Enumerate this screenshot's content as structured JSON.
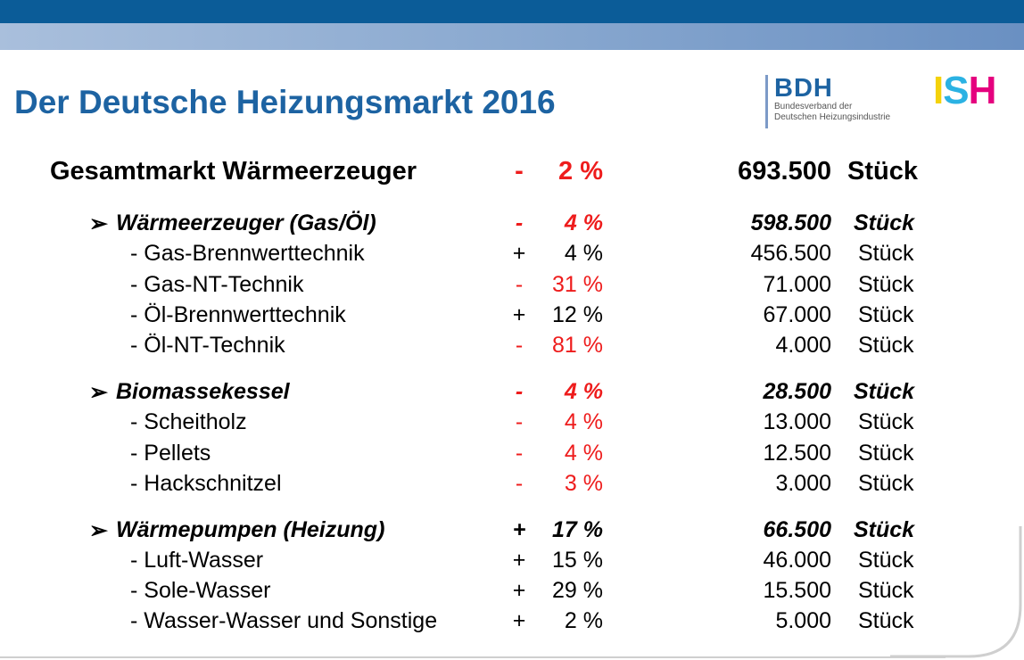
{
  "title": "Der Deutsche Heizungsmarkt 2016",
  "logos": {
    "bdh": {
      "name": "BDH",
      "line1": "Bundesverband der",
      "line2": "Deutschen Heizungsindustrie"
    },
    "ish": {
      "i": "I",
      "s": "S",
      "h": "H"
    }
  },
  "colors": {
    "title": "#1d63a2",
    "negative": "#ee1c1c",
    "positive": "#000000",
    "band_dark": "#0b5c98"
  },
  "total": {
    "label": "Gesamtmarkt Wärmeerzeuger",
    "sign": "-",
    "pct": "2 %",
    "qty": "693.500",
    "unit": "Stück"
  },
  "groups": [
    {
      "arrow": "➢",
      "label": "Wärmeerzeuger (Gas/Öl)",
      "sign": "-",
      "pct": "4 %",
      "qty": "598.500",
      "unit": "Stück",
      "items": [
        {
          "label": "- Gas-Brennwerttechnik",
          "sign": "+",
          "pct": "4 %",
          "qty": "456.500",
          "unit": "Stück"
        },
        {
          "label": "- Gas-NT-Technik",
          "sign": "-",
          "pct": "31 %",
          "qty": "71.000",
          "unit": "Stück"
        },
        {
          "label": "- Öl-Brennwerttechnik",
          "sign": "+",
          "pct": "12 %",
          "qty": "67.000",
          "unit": "Stück"
        },
        {
          "label": "- Öl-NT-Technik",
          "sign": "-",
          "pct": "81 %",
          "qty": "4.000",
          "unit": "Stück"
        }
      ]
    },
    {
      "arrow": "➢",
      "label": "Biomassekessel",
      "sign": "-",
      "pct": "4 %",
      "qty": "28.500",
      "unit": "Stück",
      "items": [
        {
          "label": "- Scheitholz",
          "sign": "-",
          "pct": "4 %",
          "qty": "13.000",
          "unit": "Stück"
        },
        {
          "label": "- Pellets",
          "sign": "-",
          "pct": "4 %",
          "qty": "12.500",
          "unit": "Stück"
        },
        {
          "label": "- Hackschnitzel",
          "sign": "-",
          "pct": "3 %",
          "qty": "3.000",
          "unit": "Stück"
        }
      ]
    },
    {
      "arrow": "➢",
      "label": "Wärmepumpen (Heizung)",
      "sign": "+",
      "pct": "17 %",
      "qty": "66.500",
      "unit": "Stück",
      "items": [
        {
          "label": "- Luft-Wasser",
          "sign": "+",
          "pct": "15 %",
          "qty": "46.000",
          "unit": "Stück"
        },
        {
          "label": "- Sole-Wasser",
          "sign": "+",
          "pct": "29 %",
          "qty": "15.500",
          "unit": "Stück"
        },
        {
          "label": "- Wasser-Wasser und Sonstige",
          "sign": "+",
          "pct": "2 %",
          "qty": "5.000",
          "unit": "Stück"
        }
      ]
    }
  ]
}
